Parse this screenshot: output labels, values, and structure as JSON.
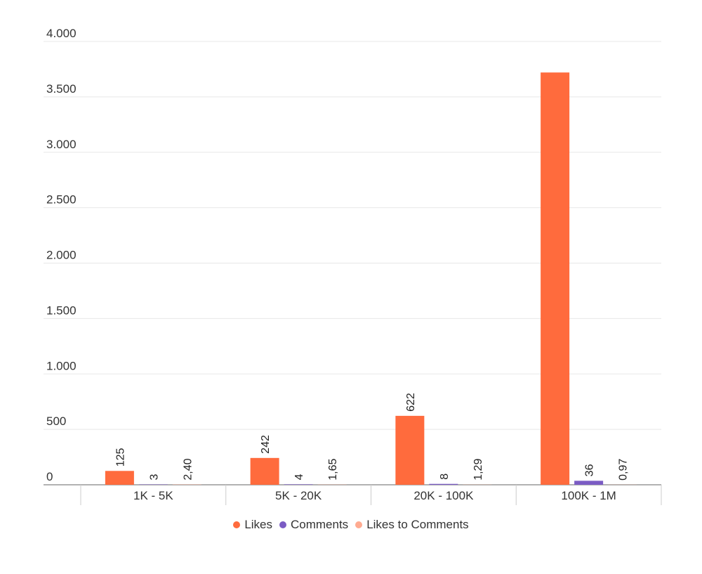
{
  "chart_data": {
    "type": "bar",
    "categories": [
      "1K - 5K",
      "5K - 20K",
      "20K - 100K",
      "100K - 1M"
    ],
    "series": [
      {
        "name": "Likes",
        "values": [
          125,
          242,
          622,
          3720
        ],
        "labels": [
          "125",
          "242",
          "622",
          ""
        ],
        "color": "#ff6b3d"
      },
      {
        "name": "Comments",
        "values": [
          3,
          4,
          8,
          36
        ],
        "labels": [
          "3",
          "4",
          "8",
          "36"
        ],
        "color": "#7b5cc4"
      },
      {
        "name": "Likes to Comments",
        "values": [
          2.4,
          1.65,
          1.29,
          0.97
        ],
        "labels": [
          "2,40",
          "1,65",
          "1,29",
          "0,97"
        ],
        "color": "#ffab91"
      }
    ],
    "ylim": [
      0,
      4000
    ],
    "yticks": [
      0,
      500,
      1000,
      1500,
      2000,
      2500,
      3000,
      3500,
      4000
    ],
    "ytick_labels": [
      "0",
      "500",
      "1.000",
      "1.500",
      "2.000",
      "2.500",
      "3.000",
      "3.500",
      "4.000"
    ],
    "grid": true,
    "legend_position": "bottom"
  }
}
